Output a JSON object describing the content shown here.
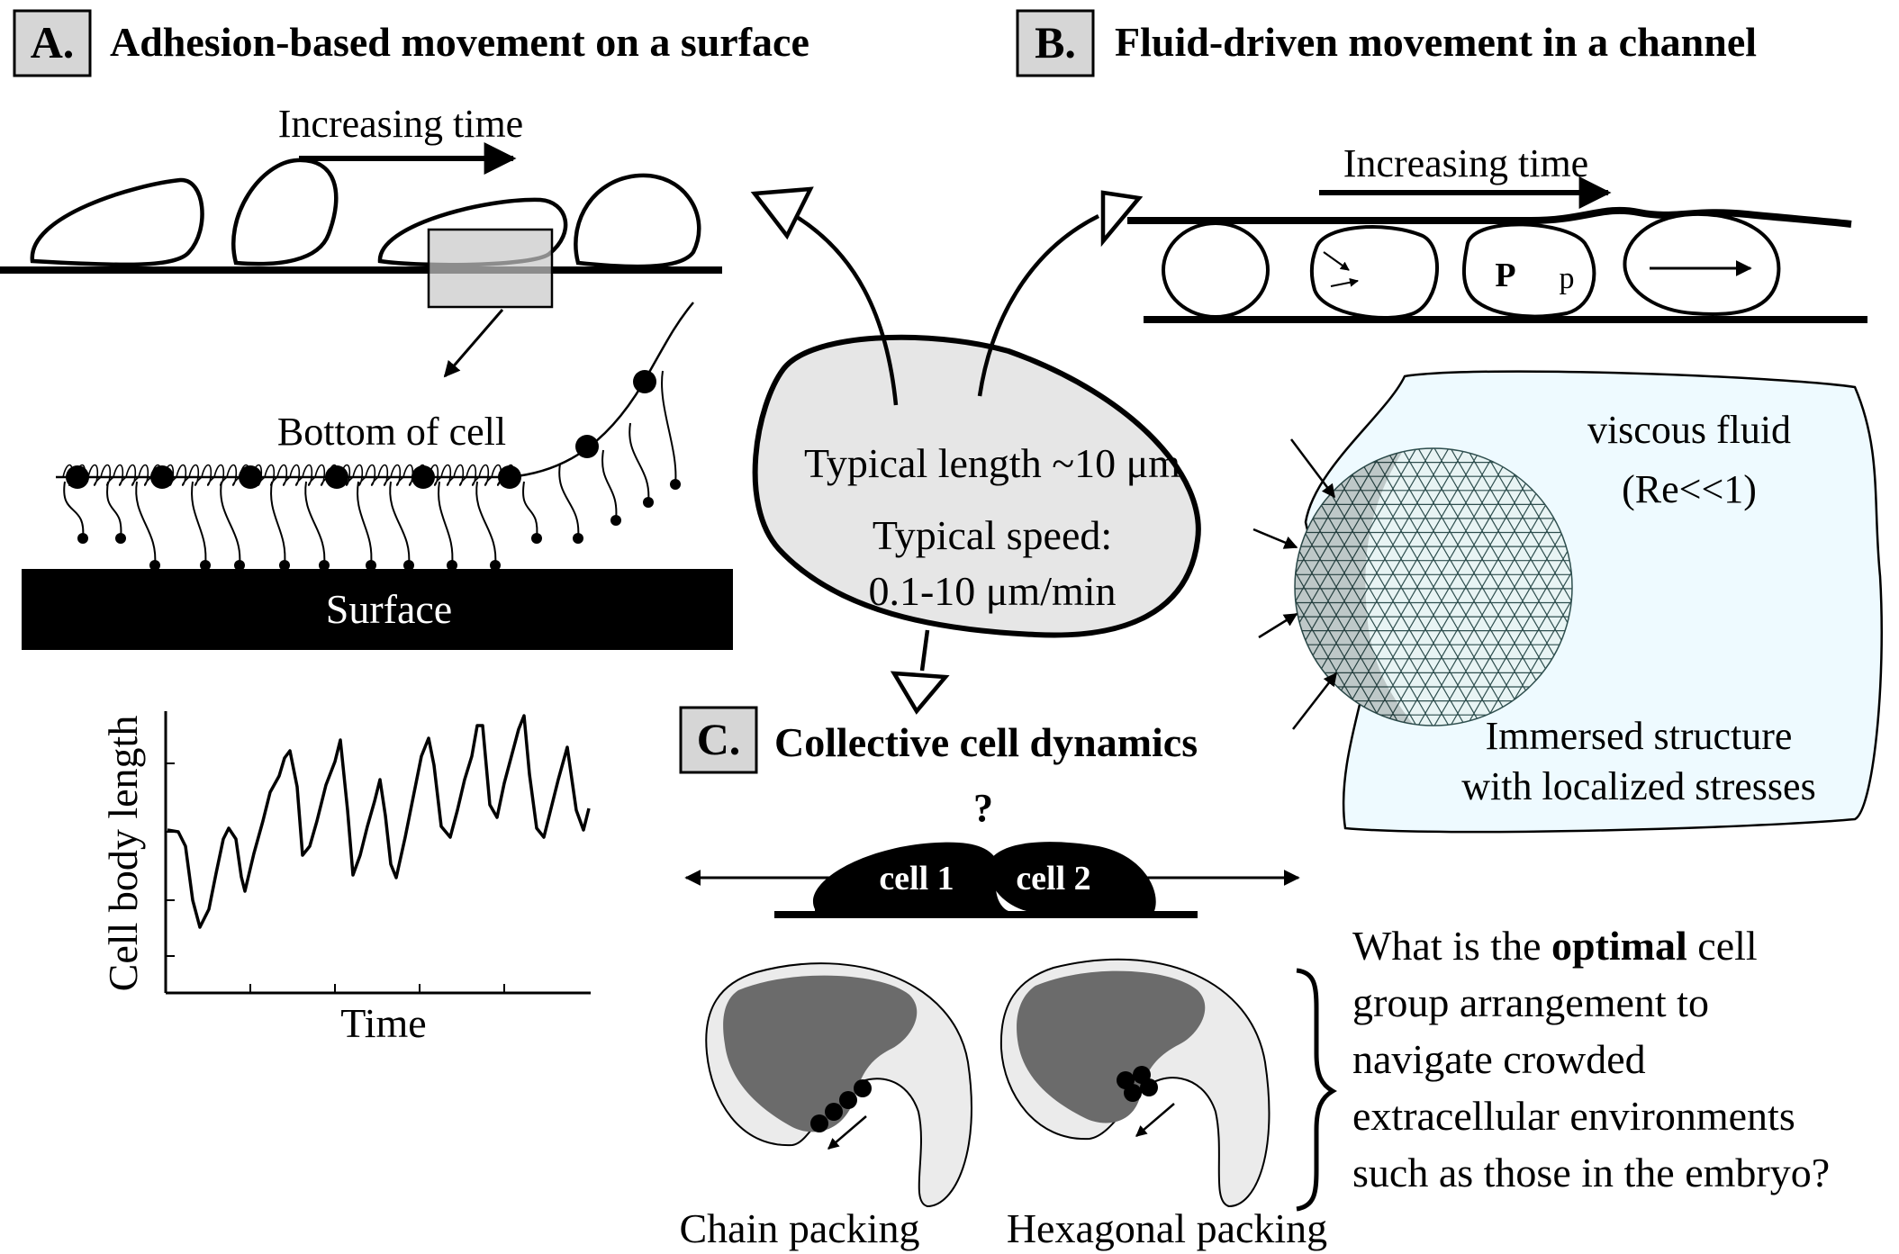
{
  "panel_a": {
    "letter": "A.",
    "title": "Adhesion-based movement on a surface",
    "time_label": "Increasing time",
    "bottom_label": "Bottom of cell",
    "surface_label": "Surface",
    "plot": {
      "ylabel": "Cell body length",
      "xlabel": "Time"
    }
  },
  "panel_b": {
    "letter": "B.",
    "title": "Fluid-driven movement in a channel",
    "time_label": "Increasing time",
    "pressure_high": "P",
    "pressure_low": "p",
    "fluid_label_1": "viscous fluid",
    "fluid_label_2": "(Re<<1)",
    "structure_label_1": "Immersed structure",
    "structure_label_2": "with localized stresses"
  },
  "center": {
    "line1": "Typical length ~10 μm",
    "line2": "Typical speed:",
    "line3": "0.1-10 μm/min"
  },
  "panel_c": {
    "letter": "C.",
    "title": "Collective cell dynamics",
    "question_mark": "?",
    "cell1": "cell 1",
    "cell2": "cell 2",
    "chain_label": "Chain packing",
    "hex_label": "Hexagonal packing",
    "question": {
      "l1_pre": "What is the ",
      "l1_bold": "optimal",
      "l1_post": " cell",
      "l2": "group arrangement to",
      "l3": "navigate crowded",
      "l4": "extracellular environments",
      "l5": "such as those in the embryo?"
    }
  },
  "colors": {
    "ink": "#000000",
    "panel_box": "#d6d6d6",
    "center_fill": "#e6e6e6",
    "fluid_fill": "#eefaff",
    "embryo_light": "#ebebeb",
    "embryo_dark": "#6b6b6b",
    "mesh": "#2f4f4f"
  }
}
